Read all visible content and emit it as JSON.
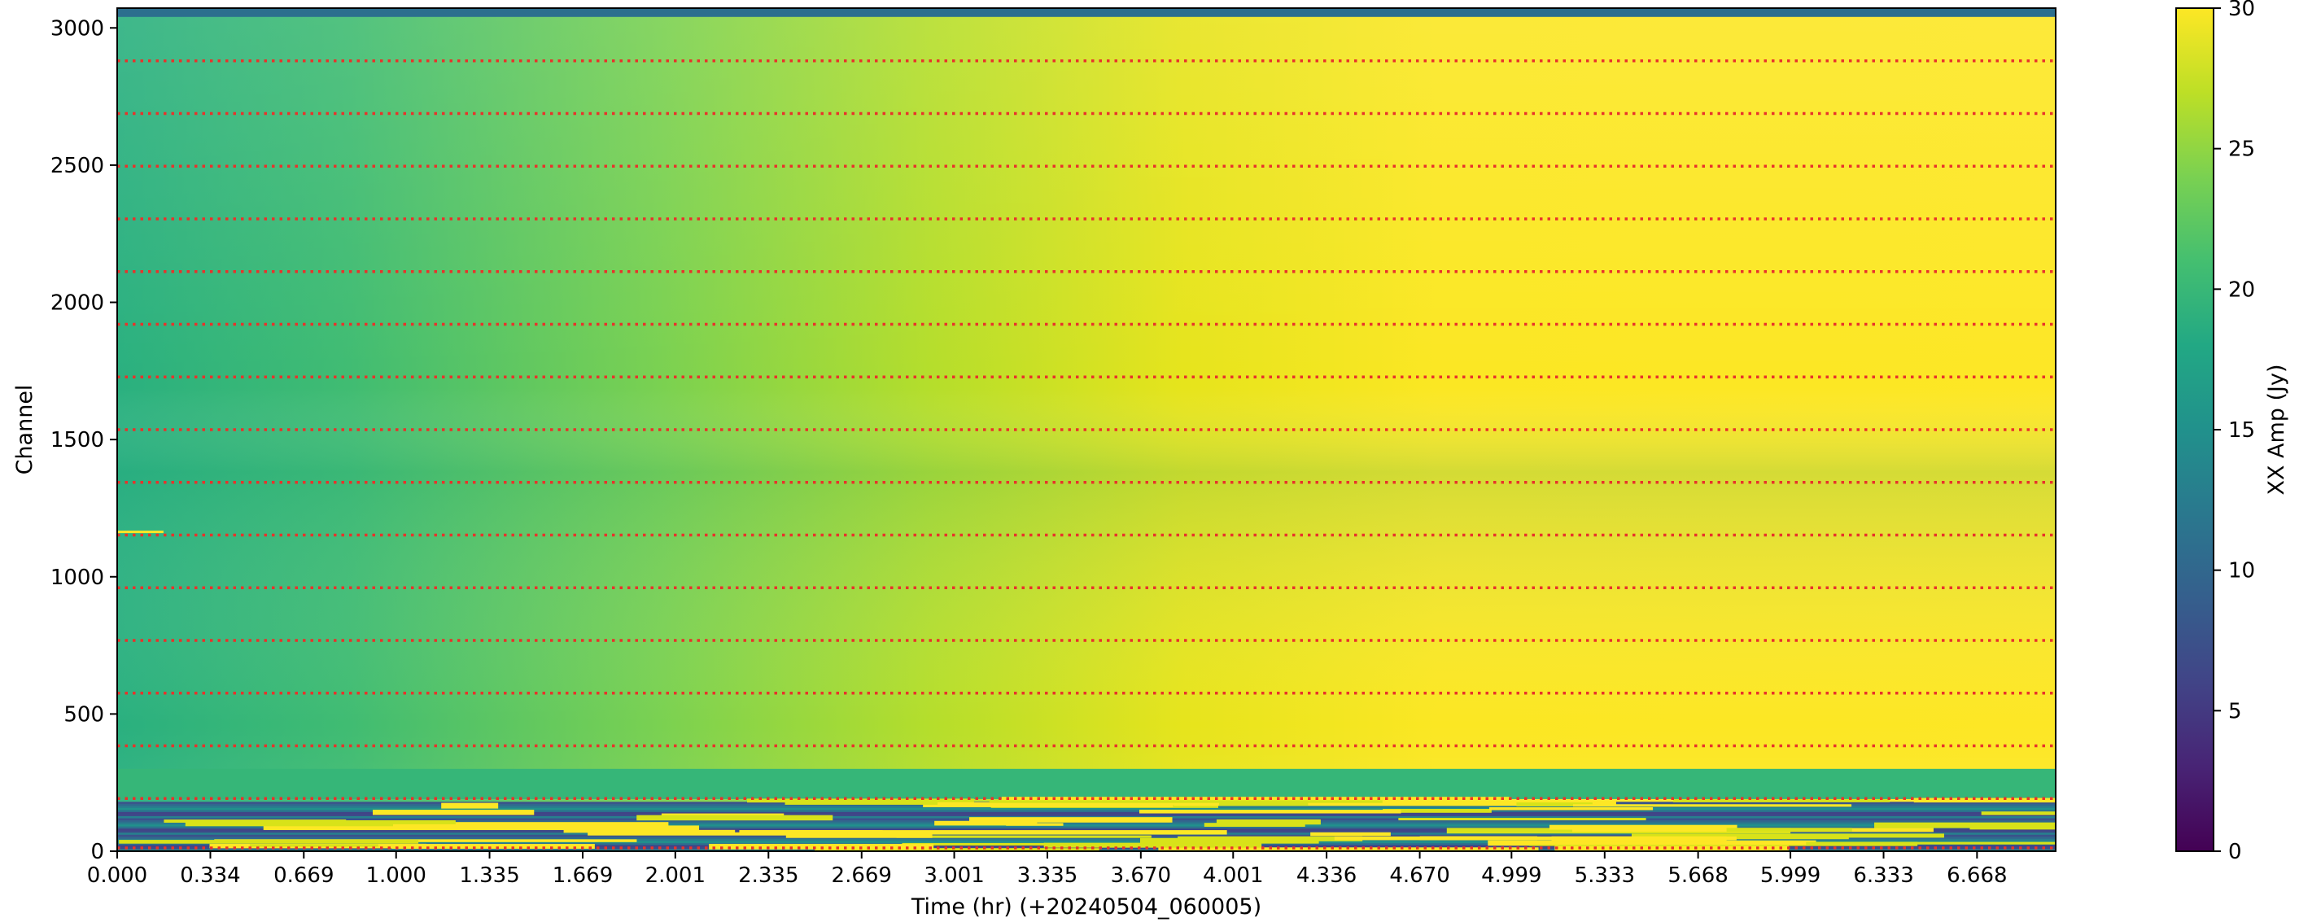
{
  "chart_data": {
    "type": "heatmap",
    "title": "",
    "xlabel": "Time (hr) (+20240504_060005)",
    "ylabel": "Channel",
    "xlim": [
      0,
      6.95
    ],
    "ylim": [
      0,
      3072
    ],
    "x_ticks": [
      "0.000",
      "0.334",
      "0.669",
      "1.000",
      "1.335",
      "1.669",
      "2.001",
      "2.335",
      "2.669",
      "3.001",
      "3.335",
      "3.670",
      "4.001",
      "4.336",
      "4.670",
      "4.999",
      "5.333",
      "5.668",
      "5.999",
      "6.333",
      "6.668"
    ],
    "x_tick_values": [
      0.0,
      0.334,
      0.669,
      1.0,
      1.335,
      1.669,
      2.001,
      2.335,
      2.669,
      3.001,
      3.335,
      3.67,
      4.001,
      4.336,
      4.67,
      4.999,
      5.333,
      5.668,
      5.999,
      6.333,
      6.668
    ],
    "y_ticks": [
      "0",
      "500",
      "1000",
      "1500",
      "2000",
      "2500",
      "3000"
    ],
    "y_tick_values": [
      0,
      500,
      1000,
      1500,
      2000,
      2500,
      3000
    ],
    "colorbar": {
      "label": "XX Amp (Jy)",
      "colormap": "viridis",
      "range": [
        0,
        30
      ],
      "ticks": [
        "0",
        "5",
        "10",
        "15",
        "20",
        "25",
        "30"
      ],
      "tick_values": [
        0,
        5,
        10,
        15,
        20,
        25,
        30
      ]
    },
    "dotted_lines": {
      "color": "#e8322b",
      "channels": [
        12,
        192,
        384,
        576,
        768,
        960,
        1152,
        1344,
        1536,
        1728,
        1920,
        2112,
        2304,
        2496,
        2688,
        2880
      ]
    },
    "grid": false,
    "legend": "none"
  }
}
